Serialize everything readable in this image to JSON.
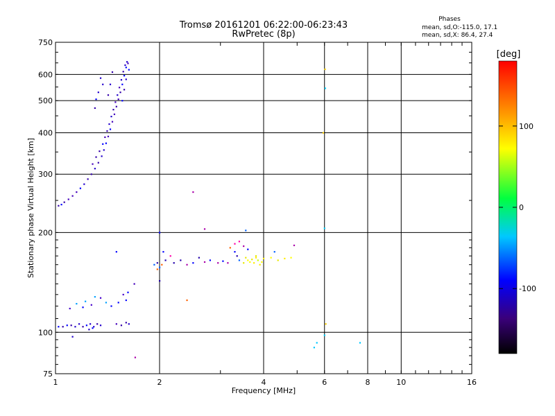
{
  "chart_data": {
    "type": "scatter",
    "title": "Tromsø 20161201 06:22:00-06:23:43",
    "subtitle": "RwPretec (8p)",
    "xlabel": "Frequency [MHz]",
    "ylabel": "Stationary phase Virtual Height [km]",
    "x_scale": "log",
    "y_scale": "log",
    "xlim": [
      1,
      16
    ],
    "ylim": [
      75,
      750
    ],
    "x_ticks": [
      1,
      2,
      4,
      6,
      8,
      10,
      16
    ],
    "y_ticks": [
      75,
      100,
      200,
      300,
      400,
      500,
      600,
      750
    ],
    "grid": true,
    "phases_box": {
      "title": "Phases",
      "line1": "mean, sd,O:-115.0, 17.1",
      "line2": "mean, sd,X:  86.4, 27.4"
    },
    "colorbar": {
      "label": "[deg]",
      "range": [
        -180,
        180
      ],
      "ticks": [
        -100,
        0,
        100
      ],
      "tick_labels": [
        "-100",
        "0",
        "100"
      ]
    },
    "series": [
      {
        "points": [
          [
            1.02,
            241
          ],
          [
            1.04,
            243
          ],
          [
            1.06,
            247
          ],
          [
            1.09,
            252
          ],
          [
            1.12,
            258
          ],
          [
            1.15,
            265
          ],
          [
            1.18,
            272
          ],
          [
            1.21,
            280
          ],
          [
            1.24,
            290
          ],
          [
            1.27,
            300
          ],
          [
            1.3,
            312
          ],
          [
            1.33,
            325
          ],
          [
            1.36,
            340
          ],
          [
            1.38,
            355
          ],
          [
            1.4,
            372
          ],
          [
            1.42,
            390
          ],
          [
            1.44,
            410
          ],
          [
            1.46,
            432
          ],
          [
            1.48,
            455
          ],
          [
            1.5,
            480
          ],
          [
            1.52,
            505
          ],
          [
            1.54,
            530
          ],
          [
            1.56,
            560
          ],
          [
            1.58,
            595
          ],
          [
            1.6,
            630
          ],
          [
            1.62,
            648
          ],
          [
            1.28,
            322
          ],
          [
            1.31,
            338
          ],
          [
            1.34,
            352
          ],
          [
            1.37,
            370
          ],
          [
            1.39,
            388
          ],
          [
            1.41,
            405
          ],
          [
            1.43,
            425
          ],
          [
            1.45,
            448
          ],
          [
            1.47,
            470
          ],
          [
            1.49,
            495
          ],
          [
            1.51,
            520
          ],
          [
            1.53,
            548
          ],
          [
            1.55,
            578
          ],
          [
            1.57,
            612
          ],
          [
            1.59,
            640
          ],
          [
            1.61,
            655
          ],
          [
            1.63,
            620
          ],
          [
            1.6,
            580
          ],
          [
            1.58,
            540
          ],
          [
            1.56,
            500
          ],
          [
            1.35,
            585
          ],
          [
            1.37,
            560
          ],
          [
            1.33,
            530
          ],
          [
            1.31,
            505
          ],
          [
            1.3,
            475
          ],
          [
            1.42,
            520
          ],
          [
            1.44,
            560
          ],
          [
            1.46,
            610
          ],
          [
            1.02,
            104
          ],
          [
            1.05,
            104
          ],
          [
            1.08,
            105
          ],
          [
            1.11,
            105
          ],
          [
            1.14,
            104
          ],
          [
            1.17,
            106
          ],
          [
            1.2,
            104
          ],
          [
            1.23,
            105
          ],
          [
            1.26,
            106
          ],
          [
            1.29,
            104
          ],
          [
            1.32,
            106
          ],
          [
            1.35,
            105
          ],
          [
            1.5,
            106
          ],
          [
            1.55,
            105
          ],
          [
            1.6,
            107
          ],
          [
            1.63,
            106
          ],
          [
            1.25,
            102
          ],
          [
            1.28,
            103
          ],
          [
            1.1,
            118
          ],
          [
            1.15,
            122
          ],
          [
            1.22,
            124
          ],
          [
            1.3,
            128
          ],
          [
            1.35,
            127
          ],
          [
            1.4,
            123
          ],
          [
            1.45,
            120
          ],
          [
            1.52,
            123
          ],
          [
            1.57,
            130
          ],
          [
            1.6,
            125
          ],
          [
            1.62,
            132
          ],
          [
            1.2,
            119
          ],
          [
            1.27,
            121
          ],
          [
            1.12,
            97
          ],
          [
            1.5,
            175
          ],
          [
            1.69,
            140
          ]
        ]
      },
      {
        "points": [
          [
            1.93,
            160
          ],
          [
            1.97,
            162
          ],
          [
            2.0,
            157
          ],
          [
            2.03,
            160
          ],
          [
            2.08,
            165
          ],
          [
            2.15,
            170
          ],
          [
            2.2,
            162
          ],
          [
            2.3,
            165
          ],
          [
            2.4,
            160
          ],
          [
            2.5,
            162
          ],
          [
            2.6,
            168
          ],
          [
            2.7,
            163
          ],
          [
            2.8,
            165
          ],
          [
            2.95,
            162
          ],
          [
            3.05,
            164
          ],
          [
            3.15,
            162
          ],
          [
            3.3,
            175
          ],
          [
            3.35,
            170
          ],
          [
            3.4,
            165
          ],
          [
            3.5,
            162
          ],
          [
            3.55,
            168
          ],
          [
            3.6,
            165
          ],
          [
            3.65,
            163
          ],
          [
            3.7,
            166
          ],
          [
            3.75,
            162
          ],
          [
            3.8,
            168
          ],
          [
            3.85,
            165
          ],
          [
            3.9,
            160
          ],
          [
            3.95,
            163
          ],
          [
            4.0,
            167
          ],
          [
            4.2,
            168
          ],
          [
            4.4,
            165
          ],
          [
            4.6,
            167
          ],
          [
            4.8,
            168
          ],
          [
            3.2,
            180
          ],
          [
            3.3,
            185
          ],
          [
            3.4,
            188
          ],
          [
            3.5,
            182
          ],
          [
            3.6,
            178
          ],
          [
            4.3,
            175
          ],
          [
            4.9,
            183
          ],
          [
            3.55,
            203
          ],
          [
            2.7,
            205
          ],
          [
            2.5,
            265
          ],
          [
            2.0,
            200
          ],
          [
            5.6,
            90
          ],
          [
            5.7,
            93
          ],
          [
            6.0,
            98
          ],
          [
            6.02,
            622
          ],
          [
            6.03,
            545
          ],
          [
            5.95,
            400
          ],
          [
            2.4,
            125
          ],
          [
            1.7,
            84
          ],
          [
            6.0,
            206
          ],
          [
            7.6,
            93
          ],
          [
            6.05,
            106
          ],
          [
            2.05,
            175
          ],
          [
            2.0,
            143
          ],
          [
            1.97,
            155
          ],
          [
            3.8,
            170
          ]
        ]
      }
    ]
  }
}
